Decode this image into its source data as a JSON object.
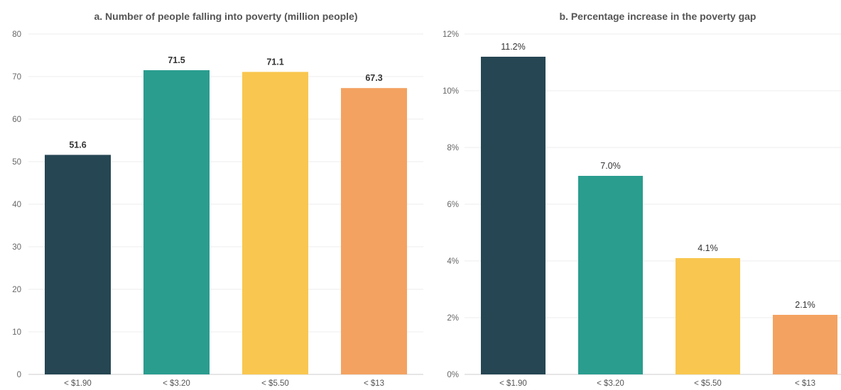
{
  "chart_data": [
    {
      "type": "bar",
      "title": "a. Number of people falling into poverty (million people)",
      "categories": [
        "< $1.90",
        "< $3.20",
        "< $5.50",
        "< $13"
      ],
      "values": [
        51.6,
        71.5,
        71.1,
        67.3
      ],
      "value_labels": [
        "51.6",
        "71.5",
        "71.1",
        "67.3"
      ],
      "ylim": [
        0,
        80
      ],
      "yticks": [
        0,
        10,
        20,
        30,
        40,
        50,
        60,
        70,
        80
      ],
      "ytick_labels": [
        "0",
        "10",
        "20",
        "30",
        "40",
        "50",
        "60",
        "70",
        "80"
      ],
      "colors": [
        "#264653",
        "#2a9d8f",
        "#f9c74f",
        "#f4a261"
      ],
      "grid": true,
      "legend": "none"
    },
    {
      "type": "bar",
      "title": "b. Percentage increase in the poverty gap",
      "categories": [
        "< $1.90",
        "< $3.20",
        "< $5.50",
        "< $13"
      ],
      "values": [
        11.2,
        7.0,
        4.1,
        2.1
      ],
      "value_labels": [
        "11.2%",
        "7.0%",
        "4.1%",
        "2.1%"
      ],
      "ylim": [
        0,
        12
      ],
      "yticks": [
        0,
        2,
        4,
        6,
        8,
        10,
        12
      ],
      "ytick_labels": [
        "0%",
        "2%",
        "4%",
        "6%",
        "8%",
        "10%",
        "12%"
      ],
      "colors": [
        "#264653",
        "#2a9d8f",
        "#f9c74f",
        "#f4a261"
      ],
      "grid": true,
      "legend": "none"
    }
  ]
}
